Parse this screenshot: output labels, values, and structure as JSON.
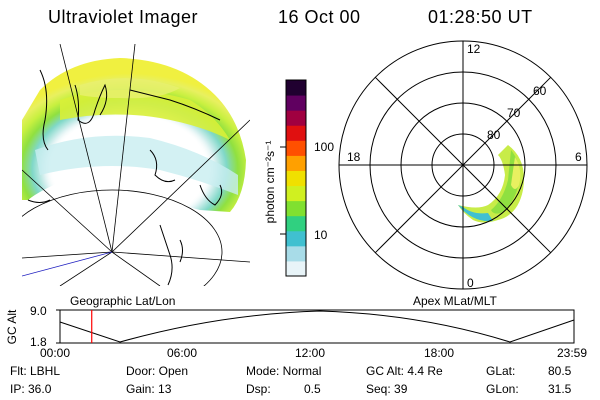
{
  "header": {
    "instrument": "Ultraviolet Imager",
    "date": "16 Oct 00",
    "time": "01:28:50 UT"
  },
  "colorbar": {
    "label": "photon cm⁻²s⁻¹",
    "tick_labels": [
      "100",
      "10"
    ],
    "tick_values": [
      100,
      10
    ],
    "range": [
      2.5,
      600
    ],
    "scale": "log",
    "colors": [
      "#e8f4f8",
      "#a8dce8",
      "#40c0d0",
      "#30d080",
      "#80e030",
      "#d0f020",
      "#f0e000",
      "#ffa000",
      "#ff5000",
      "#e01010",
      "#a00040",
      "#600060",
      "#200030"
    ]
  },
  "geo_panel": {
    "caption": "Geographic Lat/Lon",
    "aurora_colors": [
      "#d8f0f0",
      "#a8e0e0",
      "#50c8b8",
      "#90e040",
      "#c8f040",
      "#e8f060",
      "#f8f030"
    ]
  },
  "polar_plot": {
    "caption": "Apex MLat/MLT",
    "mlt_labels": [
      "12",
      "18",
      "6",
      "0"
    ],
    "mlat_labels": [
      "60",
      "70",
      "80"
    ]
  },
  "altitude_strip": {
    "axis_label": "GC Alt",
    "ymax_label": "9.0",
    "ymin_label": "1.8",
    "time_ticks": [
      "00:00",
      "06:00",
      "12:00",
      "18:00",
      "23:59"
    ],
    "marker_time": "01:28:50",
    "marker_color": "#ff0000"
  },
  "info": {
    "flt": "Flt: LBHL",
    "ip": "IP: 36.0",
    "door": "Door: Open",
    "gain": "Gain: 13",
    "mode": "Mode: Normal",
    "dsp_label": "Dsp:",
    "dsp_value": "0.5",
    "gc_alt": "GC Alt: 4.4 Re",
    "seq": "Seq: 39",
    "glat_label": "GLat:",
    "glat_value": "80.5",
    "glon_label": "GLon:",
    "glon_value": "31.5"
  }
}
